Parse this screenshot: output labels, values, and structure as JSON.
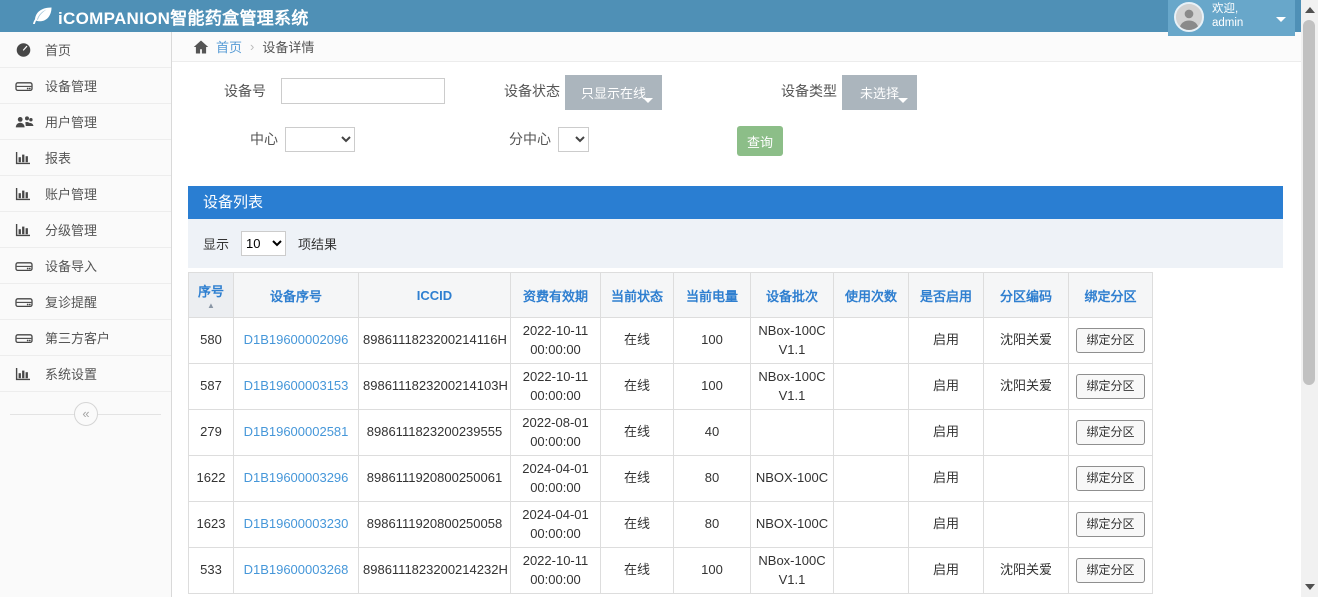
{
  "header": {
    "title": "iCOMPANION智能药盒管理系统",
    "welcome": "欢迎,",
    "username": "admin"
  },
  "breadcrumb": {
    "home": "首页",
    "separator": "›",
    "current": "设备详情"
  },
  "sidebar": {
    "collapse_glyph": "«",
    "items": [
      {
        "name": "home",
        "icon": "dashboard-icon",
        "label": "首页"
      },
      {
        "name": "device-management",
        "icon": "hdd-icon",
        "label": "设备管理"
      },
      {
        "name": "user-management",
        "icon": "users-icon",
        "label": "用户管理"
      },
      {
        "name": "reports",
        "icon": "chart-icon",
        "label": "报表"
      },
      {
        "name": "account-management",
        "icon": "chart-icon",
        "label": "账户管理"
      },
      {
        "name": "level-management",
        "icon": "chart-icon",
        "label": "分级管理"
      },
      {
        "name": "device-import",
        "icon": "hdd-icon",
        "label": "设备导入"
      },
      {
        "name": "followup-reminder",
        "icon": "hdd-icon",
        "label": "复诊提醒"
      },
      {
        "name": "third-party-client",
        "icon": "hdd-icon",
        "label": "第三方客户"
      },
      {
        "name": "system-settings",
        "icon": "chart-icon",
        "label": "系统设置"
      }
    ]
  },
  "filters": {
    "device_no_label": "设备号",
    "device_status_label": "设备状态",
    "device_status_value": "只显示在线",
    "device_type_label": "设备类型",
    "device_type_value": "未选择",
    "center_label": "中心",
    "subcenter_label": "分中心",
    "search_button": "查询"
  },
  "panel": {
    "title": "设备列表",
    "show_label": "显示",
    "page_size": "10",
    "results_label": "项结果"
  },
  "table": {
    "columns": [
      "序号",
      "设备序号",
      "ICCID",
      "资费有效期",
      "当前状态",
      "当前电量",
      "设备批次",
      "使用次数",
      "是否启用",
      "分区编码",
      "绑定分区"
    ],
    "bind_button_label": "绑定分区",
    "rows": [
      {
        "seq": "580",
        "serial": "D1B19600002096",
        "iccid": "8986111823200214116H",
        "expiry": "2022-10-11 00:00:00",
        "status": "在线",
        "battery": "100",
        "batch": "NBox-100C V1.1",
        "usage": "",
        "enabled": "启用",
        "partition": "沈阳关爱"
      },
      {
        "seq": "587",
        "serial": "D1B19600003153",
        "iccid": "8986111823200214103H",
        "expiry": "2022-10-11 00:00:00",
        "status": "在线",
        "battery": "100",
        "batch": "NBox-100C V1.1",
        "usage": "",
        "enabled": "启用",
        "partition": "沈阳关爱"
      },
      {
        "seq": "279",
        "serial": "D1B19600002581",
        "iccid": "8986111823200239555",
        "expiry": "2022-08-01 00:00:00",
        "status": "在线",
        "battery": "40",
        "batch": "",
        "usage": "",
        "enabled": "启用",
        "partition": ""
      },
      {
        "seq": "1622",
        "serial": "D1B19600003296",
        "iccid": "8986111920800250061",
        "expiry": "2024-04-01 00:00:00",
        "status": "在线",
        "battery": "80",
        "batch": "NBOX-100C",
        "usage": "",
        "enabled": "启用",
        "partition": ""
      },
      {
        "seq": "1623",
        "serial": "D1B19600003230",
        "iccid": "8986111920800250058",
        "expiry": "2024-04-01 00:00:00",
        "status": "在线",
        "battery": "80",
        "batch": "NBOX-100C",
        "usage": "",
        "enabled": "启用",
        "partition": ""
      },
      {
        "seq": "533",
        "serial": "D1B19600003268",
        "iccid": "8986111823200214232H",
        "expiry": "2022-10-11 00:00:00",
        "status": "在线",
        "battery": "100",
        "batch": "NBox-100C V1.1",
        "usage": "",
        "enabled": "启用",
        "partition": "沈阳关爱"
      }
    ]
  },
  "colors": {
    "topbar": "#4f90b6",
    "user_block": "#68a7ca",
    "panel_header": "#2a7ed2",
    "filter_row_bg": "#eef2f7",
    "search_button": "#8cbe88",
    "dropdown_button": "#abb5bd",
    "table_header_text": "#2f7fd0",
    "link": "#4697d9"
  }
}
